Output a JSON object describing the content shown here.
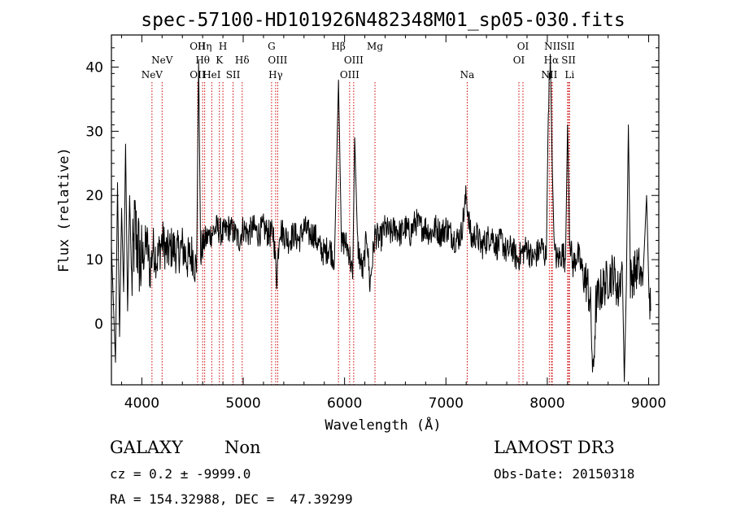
{
  "chart_data": {
    "type": "line",
    "title": "spec-57100-HD101926N482348M01_sp05-030.fits",
    "xlabel": "Wavelength (Å)",
    "ylabel": "Flux (relative)",
    "xlim": [
      3700,
      9100
    ],
    "ylim": [
      -9.5,
      45
    ],
    "xticks": [
      4000,
      5000,
      6000,
      7000,
      8000,
      9000
    ],
    "yticks": [
      0,
      10,
      20,
      30,
      40
    ],
    "line_color": "#000000",
    "marker_color": "#cc0000",
    "spectral_lines": [
      {
        "label": "NeV",
        "wave": 4100,
        "row": 3
      },
      {
        "label": "NeV",
        "wave": 4200,
        "row": 2
      },
      {
        "label": "OII",
        "wave": 4550,
        "row": 1
      },
      {
        "label": "OII",
        "wave": 4550,
        "row": 3
      },
      {
        "label": "Hη",
        "wave": 4620,
        "row": 1
      },
      {
        "label": "Hθ",
        "wave": 4600,
        "row": 2
      },
      {
        "label": "HeI",
        "wave": 4690,
        "row": 3
      },
      {
        "label": "H",
        "wave": 4800,
        "row": 1
      },
      {
        "label": "K",
        "wave": 4765,
        "row": 2
      },
      {
        "label": "SII",
        "wave": 4900,
        "row": 3
      },
      {
        "label": "Hδ",
        "wave": 4990,
        "row": 2
      },
      {
        "label": "G",
        "wave": 5280,
        "row": 1
      },
      {
        "label": "OIII",
        "wave": 5340,
        "row": 2
      },
      {
        "label": "Hγ",
        "wave": 5320,
        "row": 3
      },
      {
        "label": "Hβ",
        "wave": 5940,
        "row": 1
      },
      {
        "label": "OIII",
        "wave": 6090,
        "row": 2
      },
      {
        "label": "OIII",
        "wave": 6050,
        "row": 3
      },
      {
        "label": "Mg",
        "wave": 6300,
        "row": 1
      },
      {
        "label": "Na",
        "wave": 7210,
        "row": 3
      },
      {
        "label": "OI",
        "wave": 7760,
        "row": 1
      },
      {
        "label": "OI",
        "wave": 7720,
        "row": 2
      },
      {
        "label": "NII",
        "wave": 8050,
        "row": 1
      },
      {
        "label": "Hα",
        "wave": 8040,
        "row": 2
      },
      {
        "label": "NII",
        "wave": 8020,
        "row": 3
      },
      {
        "label": "SII",
        "wave": 8200,
        "row": 1
      },
      {
        "label": "SII",
        "wave": 8210,
        "row": 2
      },
      {
        "label": "Li",
        "wave": 8220,
        "row": 3
      }
    ],
    "series_anchors": [
      [
        3700,
        12
      ],
      [
        3740,
        -6
      ],
      [
        3760,
        22
      ],
      [
        3780,
        -2
      ],
      [
        3800,
        18
      ],
      [
        3820,
        5
      ],
      [
        3840,
        28
      ],
      [
        3860,
        2
      ],
      [
        3880,
        20
      ],
      [
        3900,
        6
      ],
      [
        3930,
        15
      ],
      [
        3960,
        12
      ],
      [
        3990,
        9
      ],
      [
        4020,
        11
      ],
      [
        4050,
        13
      ],
      [
        4080,
        8
      ],
      [
        4110,
        12
      ],
      [
        4150,
        10
      ],
      [
        4200,
        13
      ],
      [
        4250,
        11
      ],
      [
        4300,
        12
      ],
      [
        4350,
        11
      ],
      [
        4400,
        12
      ],
      [
        4450,
        10
      ],
      [
        4500,
        11
      ],
      [
        4540,
        8
      ],
      [
        4560,
        41
      ],
      [
        4580,
        11
      ],
      [
        4620,
        13
      ],
      [
        4680,
        14
      ],
      [
        4740,
        15
      ],
      [
        4800,
        14
      ],
      [
        4860,
        15
      ],
      [
        4920,
        14
      ],
      [
        4960,
        13
      ],
      [
        5000,
        15
      ],
      [
        5050,
        14
      ],
      [
        5100,
        15
      ],
      [
        5150,
        14
      ],
      [
        5200,
        15
      ],
      [
        5250,
        14
      ],
      [
        5300,
        14
      ],
      [
        5330,
        7
      ],
      [
        5360,
        15
      ],
      [
        5400,
        14
      ],
      [
        5450,
        13
      ],
      [
        5500,
        14
      ],
      [
        5550,
        13
      ],
      [
        5600,
        15
      ],
      [
        5650,
        14
      ],
      [
        5700,
        14
      ],
      [
        5750,
        12
      ],
      [
        5800,
        11
      ],
      [
        5850,
        12
      ],
      [
        5900,
        10
      ],
      [
        5940,
        38
      ],
      [
        5970,
        12
      ],
      [
        6000,
        13
      ],
      [
        6050,
        11
      ],
      [
        6080,
        7
      ],
      [
        6100,
        29
      ],
      [
        6130,
        12
      ],
      [
        6180,
        8
      ],
      [
        6220,
        14
      ],
      [
        6250,
        6
      ],
      [
        6300,
        14
      ],
      [
        6350,
        13
      ],
      [
        6400,
        15
      ],
      [
        6450,
        14
      ],
      [
        6500,
        15
      ],
      [
        6550,
        14
      ],
      [
        6600,
        15
      ],
      [
        6650,
        14
      ],
      [
        6700,
        16
      ],
      [
        6750,
        15
      ],
      [
        6800,
        15
      ],
      [
        6850,
        14
      ],
      [
        6900,
        15
      ],
      [
        6950,
        14
      ],
      [
        7000,
        15
      ],
      [
        7050,
        14
      ],
      [
        7100,
        13
      ],
      [
        7150,
        14
      ],
      [
        7200,
        20
      ],
      [
        7250,
        13
      ],
      [
        7300,
        14
      ],
      [
        7350,
        12
      ],
      [
        7400,
        13
      ],
      [
        7450,
        14
      ],
      [
        7500,
        12
      ],
      [
        7550,
        13
      ],
      [
        7600,
        11
      ],
      [
        7650,
        12
      ],
      [
        7700,
        10
      ],
      [
        7750,
        11
      ],
      [
        7800,
        12
      ],
      [
        7850,
        10
      ],
      [
        7900,
        11
      ],
      [
        7950,
        12
      ],
      [
        7990,
        10
      ],
      [
        8010,
        34
      ],
      [
        8030,
        42
      ],
      [
        8050,
        24
      ],
      [
        8070,
        11
      ],
      [
        8100,
        10
      ],
      [
        8150,
        11
      ],
      [
        8180,
        10
      ],
      [
        8200,
        31
      ],
      [
        8220,
        14
      ],
      [
        8250,
        9
      ],
      [
        8300,
        11
      ],
      [
        8350,
        8
      ],
      [
        8400,
        6
      ],
      [
        8430,
        2
      ],
      [
        8450,
        -9
      ],
      [
        8480,
        3
      ],
      [
        8520,
        5
      ],
      [
        8560,
        6
      ],
      [
        8600,
        7
      ],
      [
        8650,
        8
      ],
      [
        8700,
        5
      ],
      [
        8740,
        9
      ],
      [
        8760,
        -9
      ],
      [
        8780,
        6
      ],
      [
        8800,
        31
      ],
      [
        8820,
        7
      ],
      [
        8860,
        8
      ],
      [
        8900,
        9
      ],
      [
        8940,
        6
      ],
      [
        8980,
        20
      ],
      [
        9000,
        7
      ],
      [
        9020,
        2
      ]
    ]
  },
  "footer": {
    "object_class": "GALAXY",
    "subclass": "Non",
    "redshift": "cz = 0.2 ± -9999.0",
    "coords": "RA = 154.32988, DEC =  47.39299",
    "survey": "LAMOST DR3",
    "obs_date": "Obs-Date: 20150318"
  }
}
